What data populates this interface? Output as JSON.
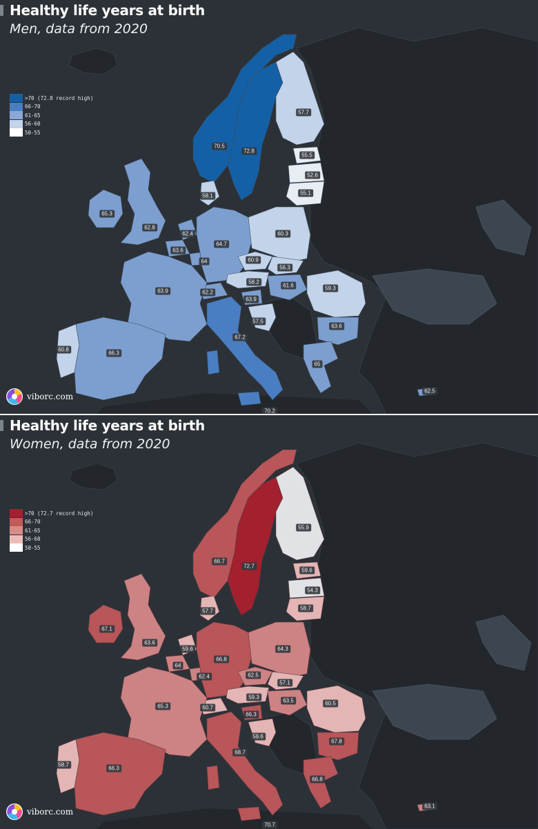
{
  "panels": [
    {
      "key": "men",
      "title": "Healthy life years at birth",
      "subtitle": "Men, data from 2020",
      "colors": {
        "c70": "#1460a6",
        "c66": "#4a7ec2",
        "c61": "#7d9fd0",
        "c56": "#c2d3ea",
        "c50": "#e8edf4"
      },
      "legend": [
        {
          "label": ">70 (72.8 record high)",
          "color": "#1460a6"
        },
        {
          "label": "66-70",
          "color": "#4a7ec2"
        },
        {
          "label": "61-65",
          "color": "#8aa8d6"
        },
        {
          "label": "56-60",
          "color": "#c2d3ea"
        },
        {
          "label": "50-55",
          "color": "#ffffff"
        }
      ],
      "values": {
        "norway": "70.5",
        "sweden": "72.8",
        "finland": "57.7",
        "estonia": "55.5",
        "latvia": "52.6",
        "lithuania": "55.1",
        "ireland": "65.3",
        "uk": "62.8",
        "denmark": "58.1",
        "netherlands": "62.4",
        "belgium": "63.6",
        "luxembourg": "64",
        "germany": "64.7",
        "poland": "60.3",
        "czechia": "60.9",
        "slovakia": "56.3",
        "austria": "58.2",
        "hungary": "61.6",
        "switzerland": "62.2",
        "slovenia": "63.9",
        "france": "63.9",
        "romania": "59.3",
        "croatia": "57.5",
        "bulgaria": "63.6",
        "italy": "67.2",
        "portugal": "60.8",
        "spain": "66.3",
        "greece": "65",
        "cyprus": "62.5",
        "malta": "70.2"
      }
    },
    {
      "key": "women",
      "title": "Healthy life years at birth",
      "subtitle": "Women, data from 2020",
      "colors": {
        "c70": "#a3202e",
        "c66": "#b8565a",
        "c61": "#cd8283",
        "c56": "#e4b5b5",
        "c50": "#e0e2e6"
      },
      "legend": [
        {
          "label": ">70 (72.7 record high)",
          "color": "#a3202e"
        },
        {
          "label": "66-70",
          "color": "#c25a57"
        },
        {
          "label": "61-65",
          "color": "#d98b87"
        },
        {
          "label": "56-60",
          "color": "#edbcb9"
        },
        {
          "label": "50-55",
          "color": "#ffffff"
        }
      ],
      "values": {
        "norway": "66.7",
        "sweden": "72.7",
        "finland": "55.9",
        "estonia": "59.6",
        "latvia": "54.3",
        "lithuania": "58.7",
        "ireland": "67.1",
        "uk": "63.6",
        "denmark": "57.7",
        "netherlands": "59.6",
        "belgium": "64",
        "luxembourg": "62.4",
        "germany": "66.8",
        "poland": "64.3",
        "czechia": "62.5",
        "slovakia": "57.1",
        "austria": "59.3",
        "hungary": "63.5",
        "switzerland": "60.7",
        "slovenia": "66.3",
        "france": "65.3",
        "romania": "60.5",
        "croatia": "59.6",
        "bulgaria": "67.8",
        "italy": "68.7",
        "portugal": "58.7",
        "spain": "66.3",
        "greece": "66.8",
        "cyprus": "63.1",
        "malta": "70.7"
      }
    }
  ],
  "brand": {
    "text": "viborc.com"
  }
}
